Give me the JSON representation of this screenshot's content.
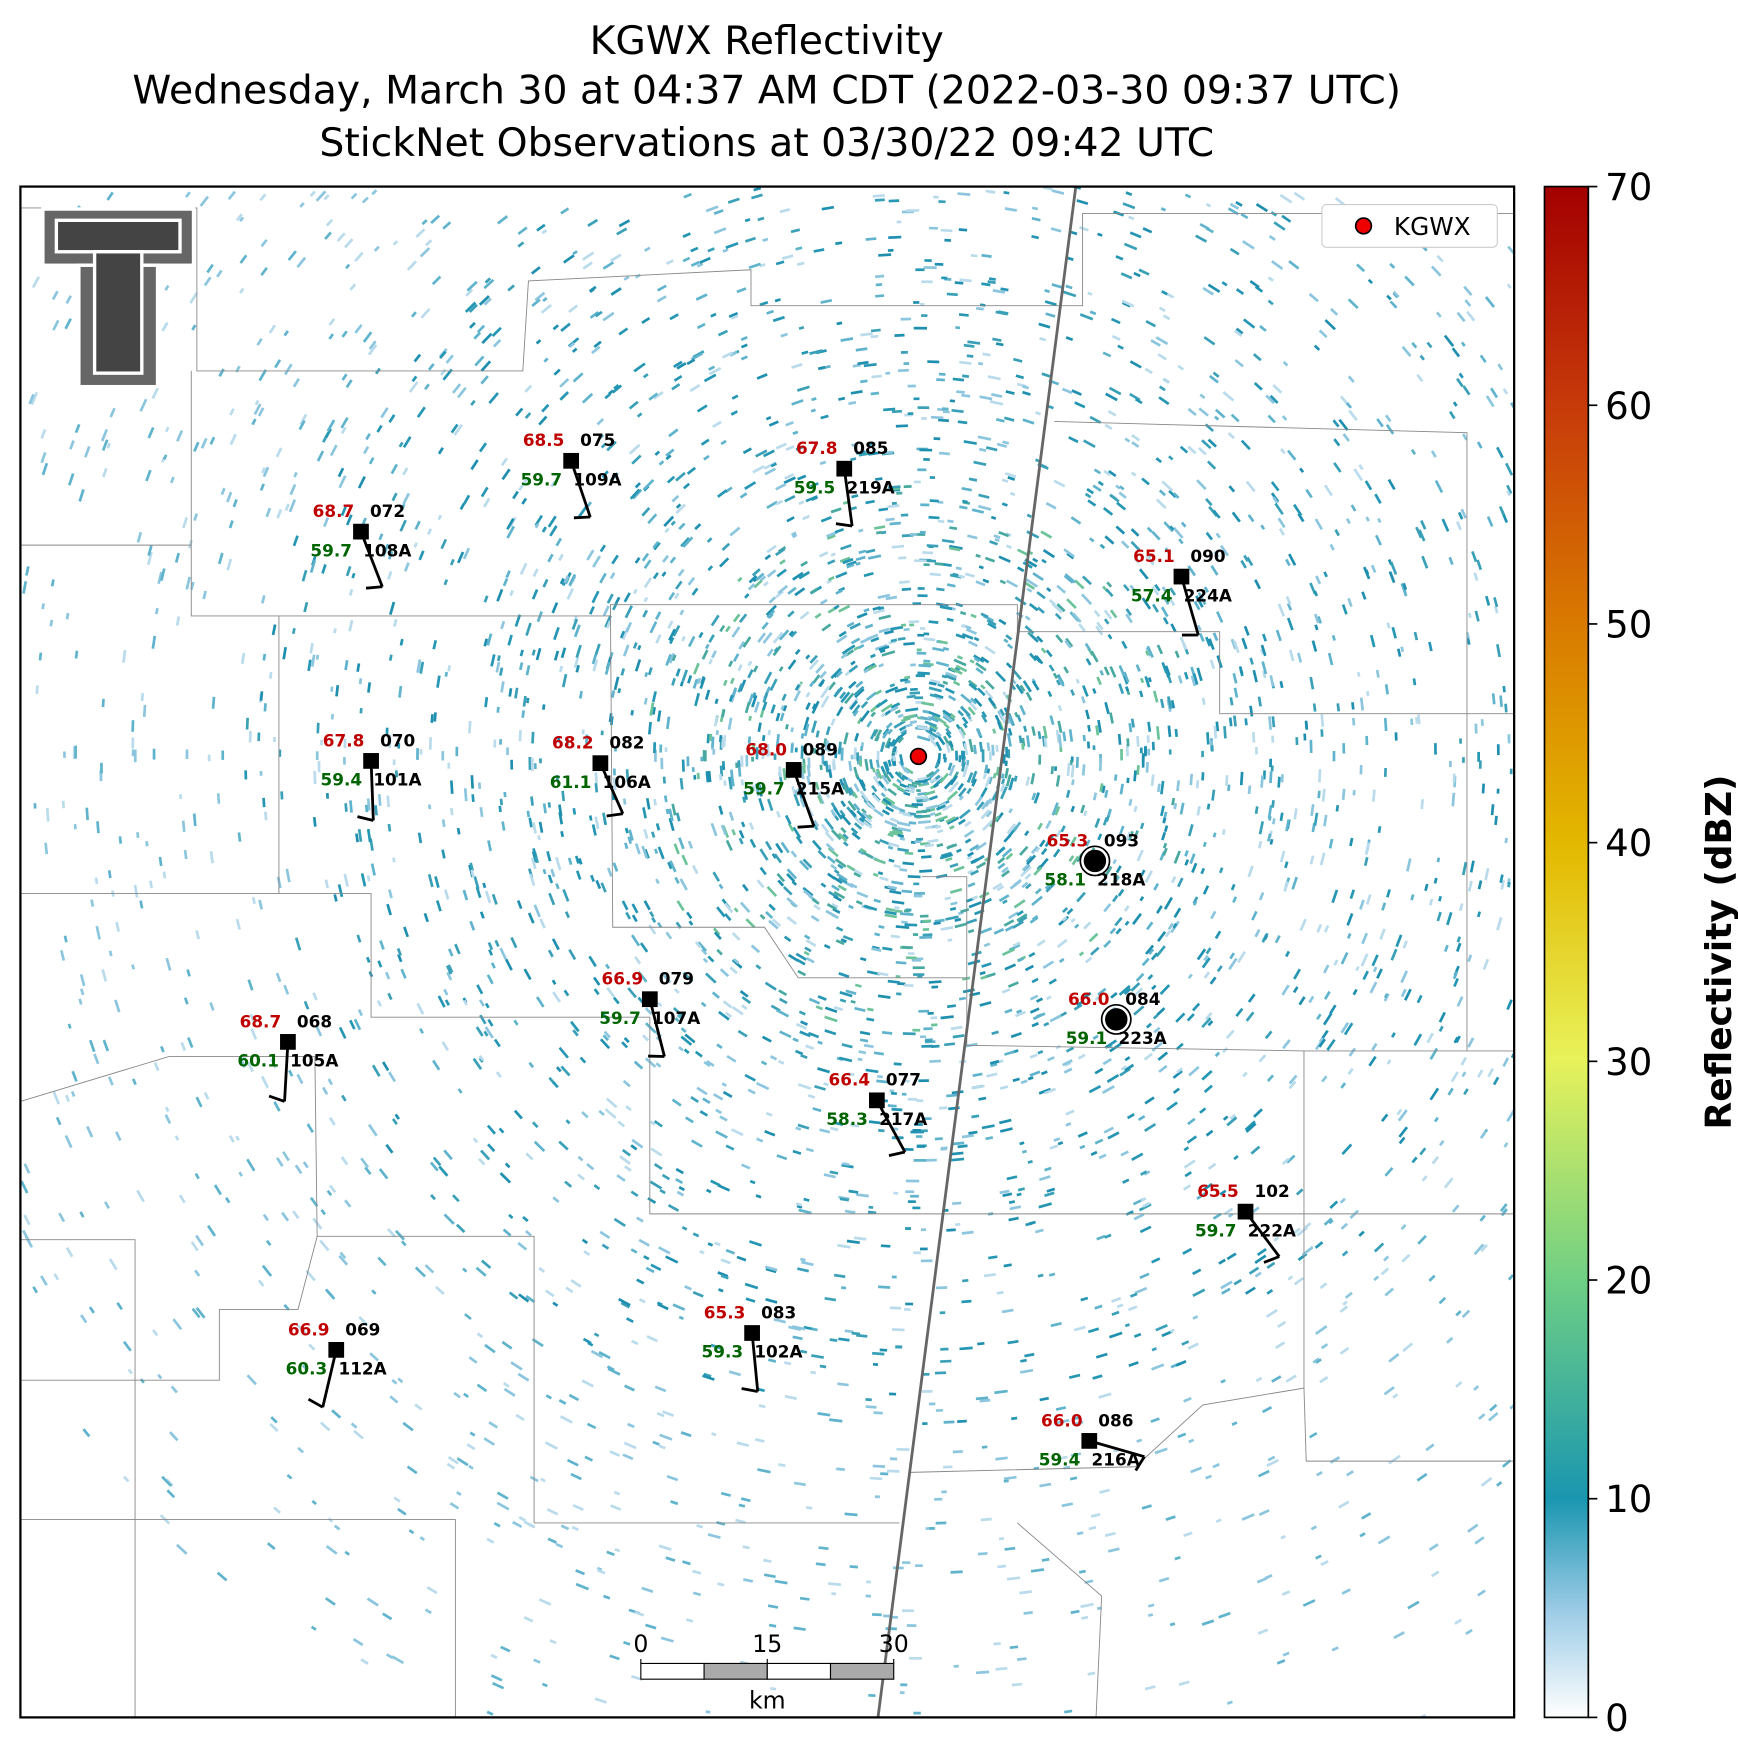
{
  "title": [
    "KGWX Reflectivity",
    "Wednesday, March 30 at 04:37 AM CDT (2022-03-30 09:37 UTC)",
    "StickNet Observations at 03/30/22 09:42 UTC"
  ],
  "legend": "KGWX",
  "colorbar": {
    "label": "Reflectivity (dBZ)",
    "lim": [
      0,
      70
    ],
    "ticks": [
      0,
      10,
      20,
      30,
      40,
      50,
      60,
      70
    ]
  },
  "scale_bar": {
    "lim": [
      0,
      30
    ],
    "ticks": [
      0,
      15,
      30
    ],
    "unit": "km"
  },
  "stations": [
    {
      "number": "075",
      "id": "109A",
      "temperature": "68.5",
      "dewpoint": "59.7"
    },
    {
      "number": "085",
      "id": "219A",
      "temperature": "67.8",
      "dewpoint": "59.5"
    },
    {
      "number": "072",
      "id": "108A",
      "temperature": "68.7",
      "dewpoint": "59.7"
    },
    {
      "number": "090",
      "id": "224A",
      "temperature": "65.1",
      "dewpoint": "57.4"
    },
    {
      "number": "070",
      "id": "101A",
      "temperature": "67.8",
      "dewpoint": "59.4"
    },
    {
      "number": "082",
      "id": "106A",
      "temperature": "68.2",
      "dewpoint": "61.1"
    },
    {
      "number": "089",
      "id": "215A",
      "temperature": "68.0",
      "dewpoint": "59.7"
    },
    {
      "number": "093",
      "id": "218A",
      "temperature": "65.3",
      "dewpoint": "58.1"
    },
    {
      "number": "084",
      "id": "223A",
      "temperature": "66.0",
      "dewpoint": "59.1"
    },
    {
      "number": "079",
      "id": "107A",
      "temperature": "66.9",
      "dewpoint": "59.7"
    },
    {
      "number": "068",
      "id": "105A",
      "temperature": "68.7",
      "dewpoint": "60.1"
    },
    {
      "number": "077",
      "id": "217A",
      "temperature": "66.4",
      "dewpoint": "58.3"
    },
    {
      "number": "102",
      "id": "222A",
      "temperature": "65.5",
      "dewpoint": "59.7"
    },
    {
      "number": "083",
      "id": "102A",
      "temperature": "65.3",
      "dewpoint": "59.3"
    },
    {
      "number": "069",
      "id": "112A",
      "temperature": "66.9",
      "dewpoint": "60.3"
    },
    {
      "number": "086",
      "id": "216A",
      "temperature": "66.0",
      "dewpoint": "59.4"
    }
  ]
}
